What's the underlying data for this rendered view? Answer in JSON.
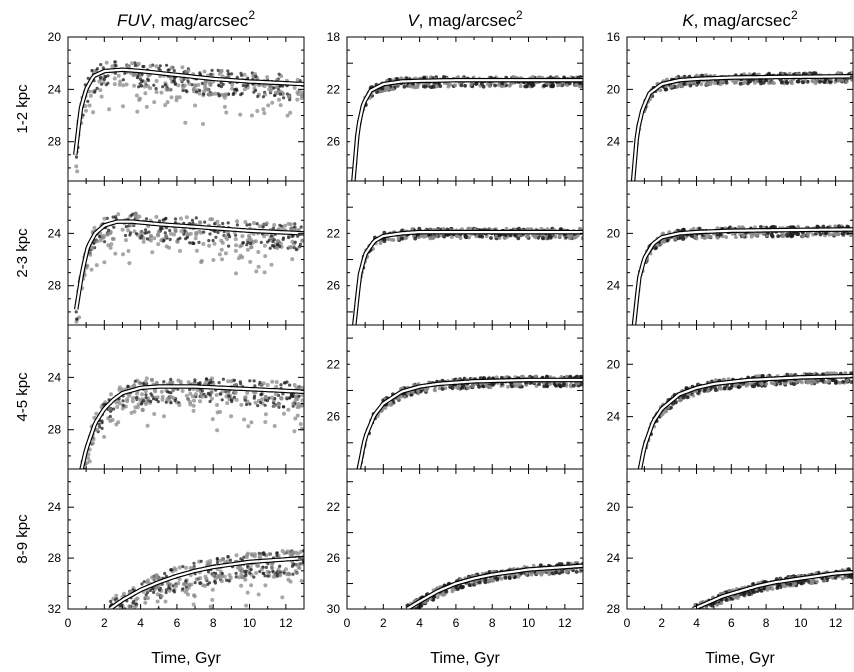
{
  "chart_data": {
    "type": "line",
    "columns": [
      {
        "band": "FUV",
        "unit": "mag/arcsec",
        "unit_exp": "2",
        "xlim": [
          0,
          13
        ],
        "ylims": [
          [
            20,
            31
          ],
          [
            20,
            31
          ],
          [
            20,
            31
          ],
          [
            21,
            32
          ]
        ],
        "yticks": [
          [
            20,
            24,
            28
          ],
          [
            24,
            28
          ],
          [
            24,
            28
          ],
          [
            24,
            28,
            32
          ]
        ]
      },
      {
        "band": "V",
        "unit": "mag/arcsec",
        "unit_exp": "2",
        "xlim": [
          0,
          13
        ],
        "ylims": [
          [
            18,
            29
          ],
          [
            18,
            29
          ],
          [
            19,
            30
          ],
          [
            19,
            30
          ]
        ],
        "yticks": [
          [
            18,
            22,
            26
          ],
          [
            22,
            26
          ],
          [
            22,
            26
          ],
          [
            22,
            26,
            30
          ]
        ]
      },
      {
        "band": "K",
        "unit": "mag/arcsec",
        "unit_exp": "2",
        "xlim": [
          0,
          13
        ],
        "ylims": [
          [
            16,
            27
          ],
          [
            16,
            27
          ],
          [
            17,
            28
          ],
          [
            17,
            28
          ]
        ],
        "yticks": [
          [
            16,
            20,
            24
          ],
          [
            20,
            24
          ],
          [
            20,
            24
          ],
          [
            20,
            24,
            28
          ]
        ]
      }
    ],
    "rows": [
      "1-2 kpc",
      "2-3 kpc",
      "4-5 kpc",
      "8-9 kpc"
    ],
    "xlabel": "Time, Gyr",
    "xticks": [
      0,
      2,
      4,
      6,
      8,
      10,
      12
    ],
    "model_curves": [
      [
        {
          "x": [
            0.4,
            0.7,
            1.0,
            1.4,
            2.0,
            3.0,
            4.0,
            6.0,
            8.0,
            10.0,
            13.0
          ],
          "y": [
            29.0,
            25.5,
            24.0,
            23.0,
            22.6,
            22.5,
            22.6,
            22.9,
            23.2,
            23.4,
            23.6
          ]
        },
        {
          "x": [
            0.45,
            0.8,
            1.1,
            1.5,
            2.0,
            2.7,
            3.5,
            5.0,
            7.0,
            10.0,
            13.0
          ],
          "y": [
            29.8,
            26.8,
            25.0,
            24.0,
            23.4,
            23.1,
            23.1,
            23.3,
            23.5,
            23.8,
            24.0
          ]
        },
        {
          "x": [
            0.75,
            1.0,
            1.5,
            2.0,
            2.5,
            3.0,
            4.0,
            5.0,
            7.0,
            10.0,
            13.0
          ],
          "y": [
            31.0,
            29.5,
            27.5,
            26.4,
            25.7,
            25.2,
            24.8,
            24.7,
            24.7,
            24.9,
            25.1
          ]
        },
        {
          "x": [
            2.3,
            3.0,
            4.0,
            5.0,
            6.0,
            7.0,
            8.0,
            10.0,
            12.0,
            13.0
          ],
          "y": [
            32.0,
            31.3,
            30.5,
            29.9,
            29.4,
            29.0,
            28.7,
            28.3,
            28.1,
            28.0
          ]
        }
      ],
      [
        {
          "x": [
            0.35,
            0.6,
            0.9,
            1.3,
            2.0,
            3.0,
            4.0,
            6.0,
            9.0,
            13.0
          ],
          "y": [
            29.0,
            25.0,
            23.1,
            22.1,
            21.6,
            21.4,
            21.35,
            21.3,
            21.3,
            21.3
          ]
        },
        {
          "x": [
            0.4,
            0.7,
            1.0,
            1.5,
            2.0,
            3.0,
            4.0,
            6.0,
            9.0,
            13.0
          ],
          "y": [
            29.0,
            25.2,
            23.6,
            22.6,
            22.2,
            22.0,
            21.9,
            21.9,
            21.9,
            21.9
          ]
        },
        {
          "x": [
            0.65,
            1.0,
            1.5,
            2.0,
            3.0,
            4.0,
            5.0,
            7.0,
            10.0,
            13.0
          ],
          "y": [
            30.0,
            27.6,
            25.9,
            25.0,
            24.1,
            23.7,
            23.5,
            23.3,
            23.2,
            23.2
          ]
        },
        {
          "x": [
            3.3,
            4.0,
            5.0,
            6.0,
            7.0,
            8.0,
            10.0,
            12.0,
            13.0
          ],
          "y": [
            30.0,
            29.4,
            28.6,
            28.0,
            27.6,
            27.3,
            26.9,
            26.7,
            26.6
          ]
        }
      ],
      [
        {
          "x": [
            0.35,
            0.6,
            0.9,
            1.3,
            2.0,
            3.0,
            4.0,
            6.0,
            9.0,
            13.0
          ],
          "y": [
            27.0,
            23.2,
            21.5,
            20.3,
            19.6,
            19.3,
            19.2,
            19.1,
            19.05,
            19.0
          ]
        },
        {
          "x": [
            0.4,
            0.7,
            1.0,
            1.5,
            2.0,
            3.0,
            4.0,
            6.0,
            9.0,
            13.0
          ],
          "y": [
            27.0,
            23.4,
            21.9,
            20.8,
            20.3,
            20.0,
            19.9,
            19.8,
            19.75,
            19.7
          ]
        },
        {
          "x": [
            0.75,
            1.0,
            1.5,
            2.0,
            3.0,
            4.0,
            5.0,
            7.0,
            10.0,
            13.0
          ],
          "y": [
            28.0,
            26.3,
            24.4,
            23.4,
            22.3,
            21.8,
            21.5,
            21.2,
            21.0,
            20.9
          ]
        },
        {
          "x": [
            3.8,
            4.5,
            5.5,
            6.5,
            7.5,
            8.5,
            10.0,
            12.0,
            13.0
          ],
          "y": [
            28.0,
            27.6,
            27.0,
            26.6,
            26.2,
            25.9,
            25.6,
            25.2,
            25.1
          ]
        }
      ]
    ]
  }
}
